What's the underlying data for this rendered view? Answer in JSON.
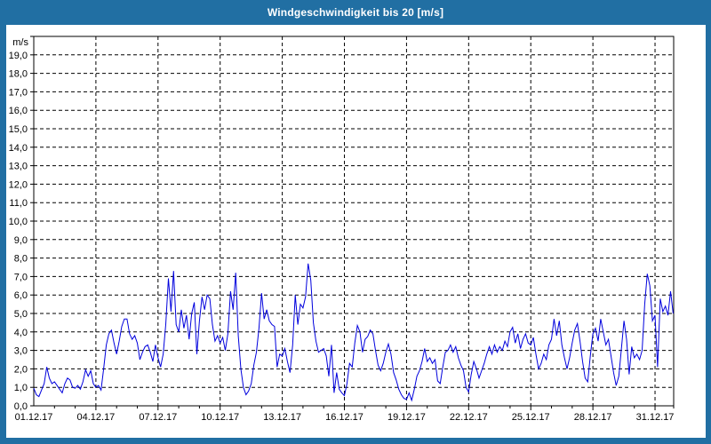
{
  "window": {
    "title": "Windgeschwindigkeit bis 20 [m/s]"
  },
  "colors": {
    "frame": "#216fa3",
    "title_text": "#ffffff",
    "panel_background": "#ffffff",
    "grid": "#000000",
    "axis": "#000000",
    "tick_label": "#000000",
    "series_line": "#0000dd"
  },
  "chart_data": {
    "type": "line",
    "title": "Windgeschwindigkeit bis 20 [m/s]",
    "xlabel": "",
    "ylabel": "m/s",
    "ylim": [
      0,
      20
    ],
    "ytick_step": 1.0,
    "grid": "dashed",
    "legend": "none",
    "ytick_labels": [
      "0,0",
      "1,0",
      "2,0",
      "3,0",
      "4,0",
      "5,0",
      "6,0",
      "7,0",
      "8,0",
      "9,0",
      "10,0",
      "11,0",
      "12,0",
      "13,0",
      "14,0",
      "15,0",
      "16,0",
      "17,0",
      "18,0",
      "19,0"
    ],
    "xticks": [
      {
        "day": 0,
        "label": "01.12.17"
      },
      {
        "day": 3,
        "label": "04.12.17"
      },
      {
        "day": 6,
        "label": "07.12.17"
      },
      {
        "day": 9,
        "label": "10.12.17"
      },
      {
        "day": 12,
        "label": "13.12.17"
      },
      {
        "day": 15,
        "label": "16.12.17"
      },
      {
        "day": 18,
        "label": "19.12.17"
      },
      {
        "day": 21,
        "label": "22.12.17"
      },
      {
        "day": 24,
        "label": "25.12.17"
      },
      {
        "day": 27,
        "label": "28.12.17"
      },
      {
        "day": 30,
        "label": "31.12.17"
      }
    ],
    "minor_xtick_every_days": 1,
    "x_total_days": 30.9,
    "samples_per_day": 8,
    "series": [
      {
        "name": "Windgeschwindigkeit",
        "unit": "m/s",
        "values": [
          0.95,
          0.6,
          0.5,
          0.85,
          1.2,
          2.1,
          1.5,
          1.2,
          1.3,
          1.1,
          0.9,
          0.7,
          1.2,
          1.5,
          1.4,
          1.0,
          0.95,
          1.1,
          0.9,
          1.3,
          1.95,
          1.6,
          1.9,
          1.2,
          1.0,
          1.1,
          0.85,
          2.0,
          3.3,
          3.9,
          4.1,
          3.4,
          2.8,
          3.5,
          4.3,
          4.7,
          4.7,
          3.9,
          3.6,
          3.8,
          3.4,
          2.5,
          2.9,
          3.2,
          3.3,
          2.9,
          2.4,
          3.3,
          2.6,
          2.1,
          2.8,
          4.4,
          6.9,
          5.1,
          7.3,
          4.4,
          4.0,
          5.2,
          4.2,
          4.9,
          3.6,
          5.0,
          5.6,
          2.8,
          4.6,
          5.9,
          5.2,
          6.0,
          5.8,
          4.4,
          3.5,
          3.8,
          3.4,
          3.7,
          3.0,
          3.9,
          6.2,
          5.2,
          7.2,
          3.8,
          2.0,
          1.0,
          0.6,
          0.8,
          1.2,
          2.2,
          2.9,
          4.2,
          6.1,
          4.7,
          5.2,
          4.6,
          4.4,
          4.3,
          2.1,
          2.8,
          2.7,
          3.1,
          2.4,
          1.8,
          3.3,
          6.0,
          4.4,
          5.5,
          5.3,
          5.9,
          7.7,
          6.8,
          4.5,
          3.5,
          2.9,
          3.0,
          3.1,
          2.7,
          1.6,
          3.3,
          0.7,
          1.8,
          0.9,
          0.7,
          0.55,
          1.2,
          2.3,
          2.1,
          3.4,
          4.35,
          4.0,
          2.9,
          3.6,
          3.75,
          4.1,
          3.9,
          3.0,
          2.2,
          1.9,
          2.3,
          2.9,
          3.35,
          2.8,
          1.8,
          1.4,
          0.9,
          0.6,
          0.4,
          0.35,
          0.7,
          0.3,
          0.9,
          1.6,
          1.9,
          2.4,
          3.1,
          2.4,
          2.6,
          2.3,
          2.5,
          1.35,
          1.2,
          2.1,
          2.9,
          3.0,
          3.3,
          2.9,
          3.2,
          2.6,
          2.2,
          1.9,
          1.0,
          0.75,
          1.7,
          2.4,
          2.0,
          1.5,
          1.9,
          2.3,
          2.8,
          3.2,
          2.8,
          3.3,
          2.9,
          3.2,
          3.0,
          3.5,
          3.2,
          4.0,
          4.25,
          3.4,
          3.9,
          3.1,
          3.6,
          3.9,
          3.4,
          3.3,
          3.7,
          2.8,
          2.0,
          2.3,
          2.8,
          2.5,
          3.3,
          3.6,
          4.7,
          3.8,
          4.6,
          3.3,
          2.6,
          2.0,
          2.6,
          3.4,
          4.1,
          4.45,
          3.5,
          2.4,
          1.5,
          1.3,
          2.7,
          3.9,
          4.2,
          3.5,
          4.7,
          4.0,
          3.3,
          3.6,
          2.7,
          1.8,
          1.1,
          1.6,
          3.1,
          4.6,
          3.6,
          1.7,
          3.2,
          2.6,
          2.8,
          2.5,
          3.0,
          5.5,
          7.15,
          6.5,
          4.6,
          4.9,
          2.1,
          5.8,
          5.1,
          5.4,
          4.9,
          6.2,
          5.0
        ]
      }
    ]
  }
}
